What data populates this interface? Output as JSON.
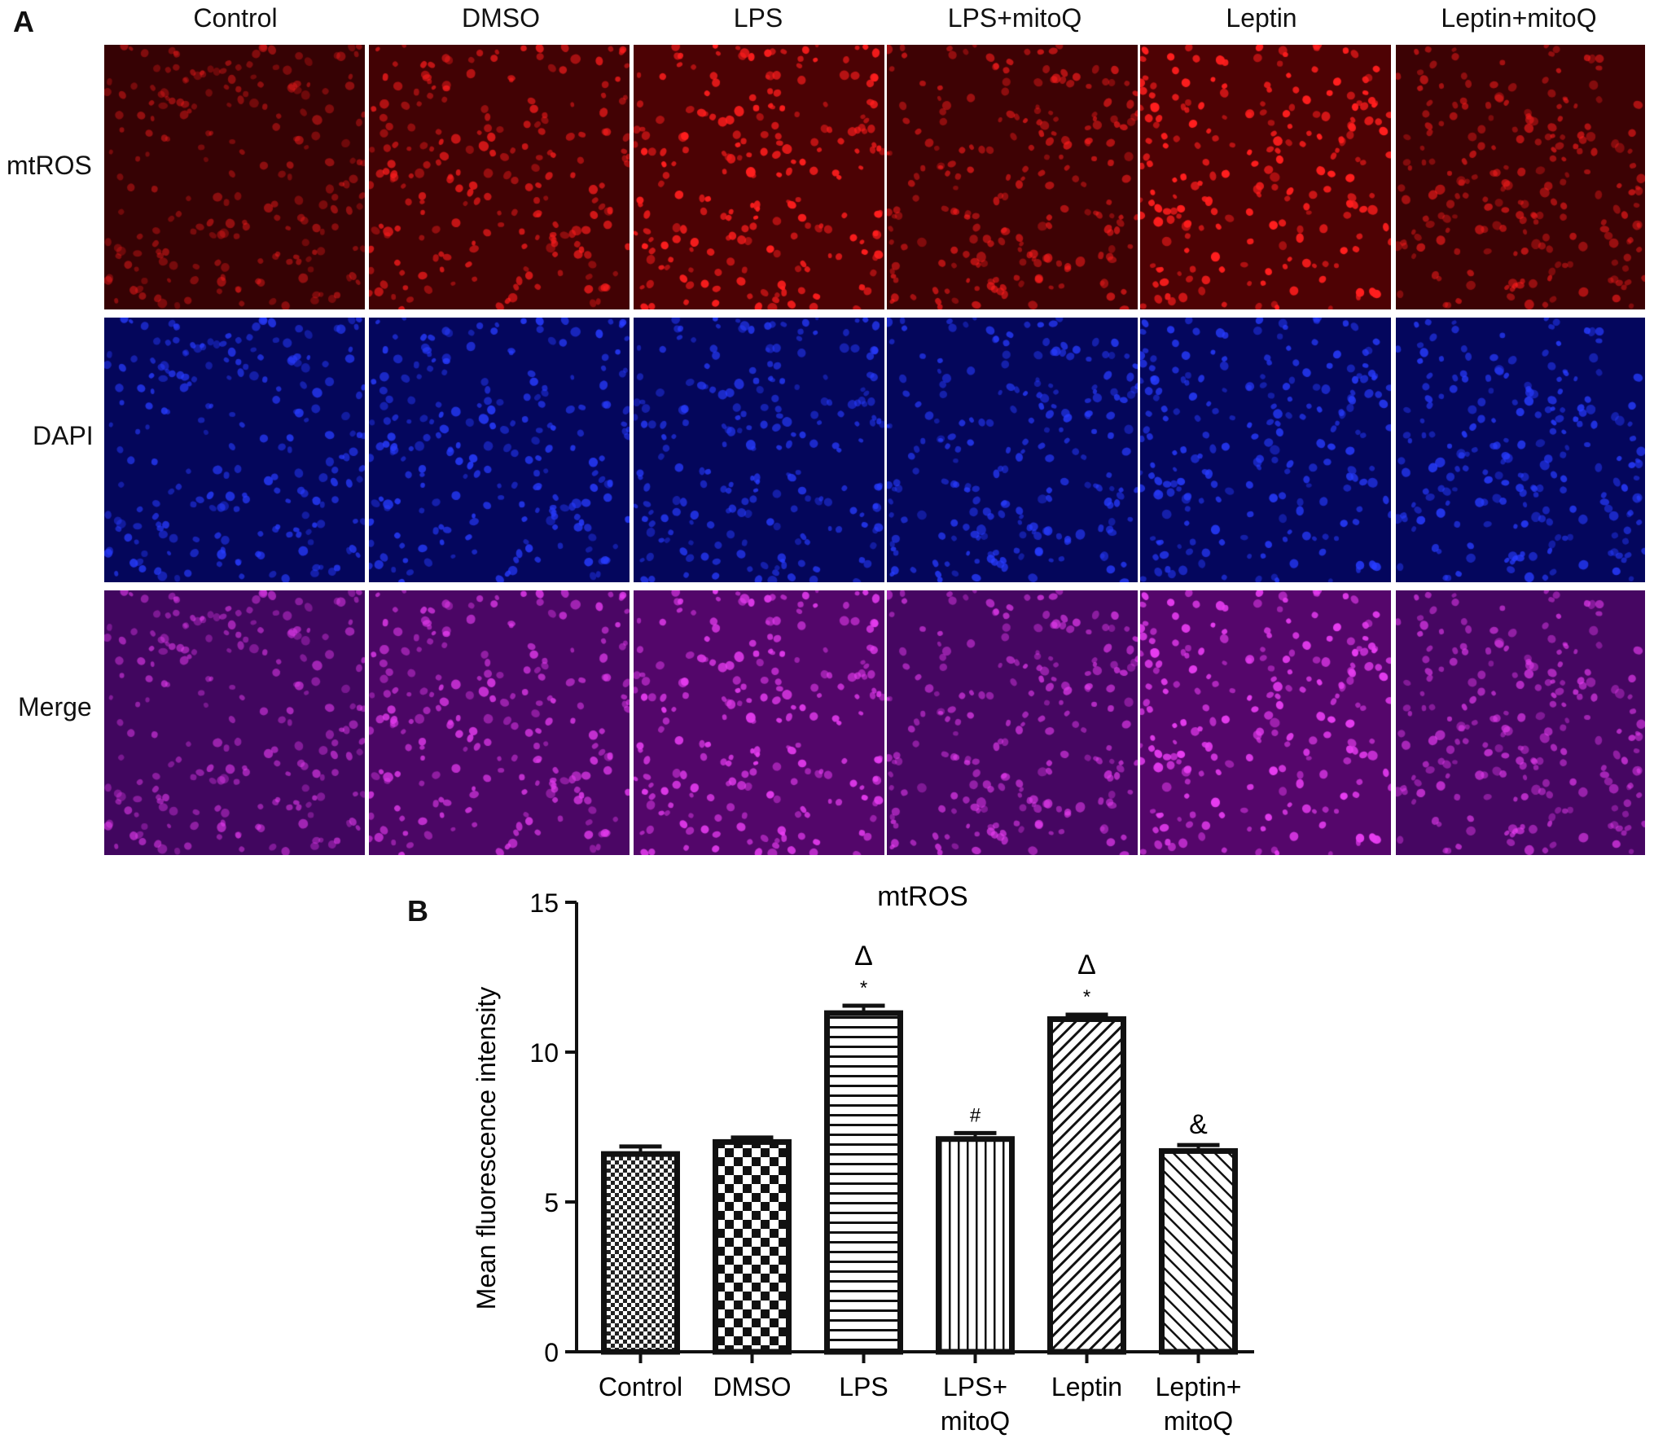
{
  "panel_a": {
    "letter": "A",
    "columns": [
      "Control",
      "DMSO",
      "LPS",
      "LPS+mitoQ",
      "Leptin",
      "Leptin+mitoQ"
    ],
    "rows": [
      {
        "label": "mtROS",
        "stain": "red",
        "intensity": [
          0.35,
          0.65,
          0.9,
          0.55,
          0.95,
          0.5
        ]
      },
      {
        "label": "DAPI",
        "stain": "blue",
        "intensity": [
          0.7,
          0.75,
          0.7,
          0.7,
          0.75,
          0.75
        ]
      },
      {
        "label": "Merge",
        "stain": "merge",
        "intensity": [
          0.5,
          0.7,
          0.85,
          0.6,
          0.9,
          0.6
        ]
      }
    ]
  },
  "panel_b": {
    "letter": "B"
  },
  "chart_data": {
    "type": "bar",
    "title": "mtROS",
    "ylabel": "Mean fluorescence intensity",
    "xlabel": "",
    "ylim": [
      0,
      15
    ],
    "yticks": [
      0,
      5,
      10,
      15
    ],
    "categories": [
      [
        "Control"
      ],
      [
        "DMSO"
      ],
      [
        "LPS"
      ],
      [
        "LPS+",
        "mitoQ"
      ],
      [
        "Leptin"
      ],
      [
        "Leptin+",
        "mitoQ"
      ]
    ],
    "values": [
      6.6,
      7.0,
      11.3,
      7.1,
      11.1,
      6.7
    ],
    "errors": [
      0.25,
      0.15,
      0.25,
      0.2,
      0.15,
      0.2
    ],
    "patterns": [
      "fine-check",
      "checker",
      "horizontal",
      "vertical",
      "diagonal-dense",
      "diagonal"
    ],
    "annotations": [
      {
        "bar": 2,
        "marks": [
          "*",
          "Δ"
        ]
      },
      {
        "bar": 3,
        "marks": [
          "#"
        ]
      },
      {
        "bar": 4,
        "marks": [
          "*",
          "Δ"
        ]
      },
      {
        "bar": 5,
        "marks": [
          "&"
        ]
      }
    ]
  }
}
